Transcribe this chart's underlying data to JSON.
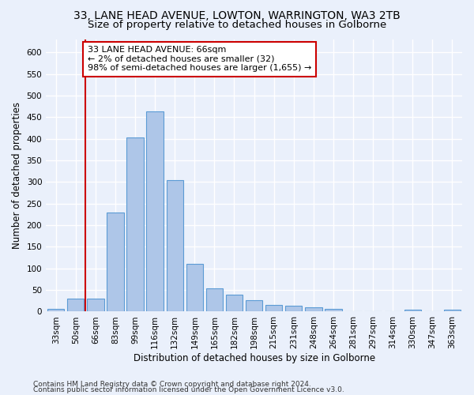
{
  "title_line1": "33, LANE HEAD AVENUE, LOWTON, WARRINGTON, WA3 2TB",
  "title_line2": "Size of property relative to detached houses in Golborne",
  "xlabel": "Distribution of detached houses by size in Golborne",
  "ylabel": "Number of detached properties",
  "categories": [
    "33sqm",
    "50sqm",
    "66sqm",
    "83sqm",
    "99sqm",
    "116sqm",
    "132sqm",
    "149sqm",
    "165sqm",
    "182sqm",
    "198sqm",
    "215sqm",
    "231sqm",
    "248sqm",
    "264sqm",
    "281sqm",
    "297sqm",
    "314sqm",
    "330sqm",
    "347sqm",
    "363sqm"
  ],
  "values": [
    7,
    30,
    30,
    230,
    403,
    463,
    305,
    110,
    54,
    39,
    26,
    15,
    13,
    10,
    6,
    0,
    0,
    0,
    5,
    0,
    5
  ],
  "bar_color": "#aec6e8",
  "bar_edge_color": "#5b9bd5",
  "highlight_line_color": "#cc0000",
  "annotation_text": "33 LANE HEAD AVENUE: 66sqm\n← 2% of detached houses are smaller (32)\n98% of semi-detached houses are larger (1,655) →",
  "annotation_box_color": "#ffffff",
  "annotation_box_edge_color": "#cc0000",
  "ylim": [
    0,
    630
  ],
  "yticks": [
    0,
    50,
    100,
    150,
    200,
    250,
    300,
    350,
    400,
    450,
    500,
    550,
    600
  ],
  "footer_line1": "Contains HM Land Registry data © Crown copyright and database right 2024.",
  "footer_line2": "Contains public sector information licensed under the Open Government Licence v3.0.",
  "background_color": "#eaf0fb",
  "plot_bg_color": "#eaf0fb",
  "grid_color": "#ffffff",
  "title_fontsize": 10,
  "subtitle_fontsize": 9.5,
  "axis_label_fontsize": 8.5,
  "tick_fontsize": 7.5,
  "annotation_fontsize": 8,
  "footer_fontsize": 6.5
}
